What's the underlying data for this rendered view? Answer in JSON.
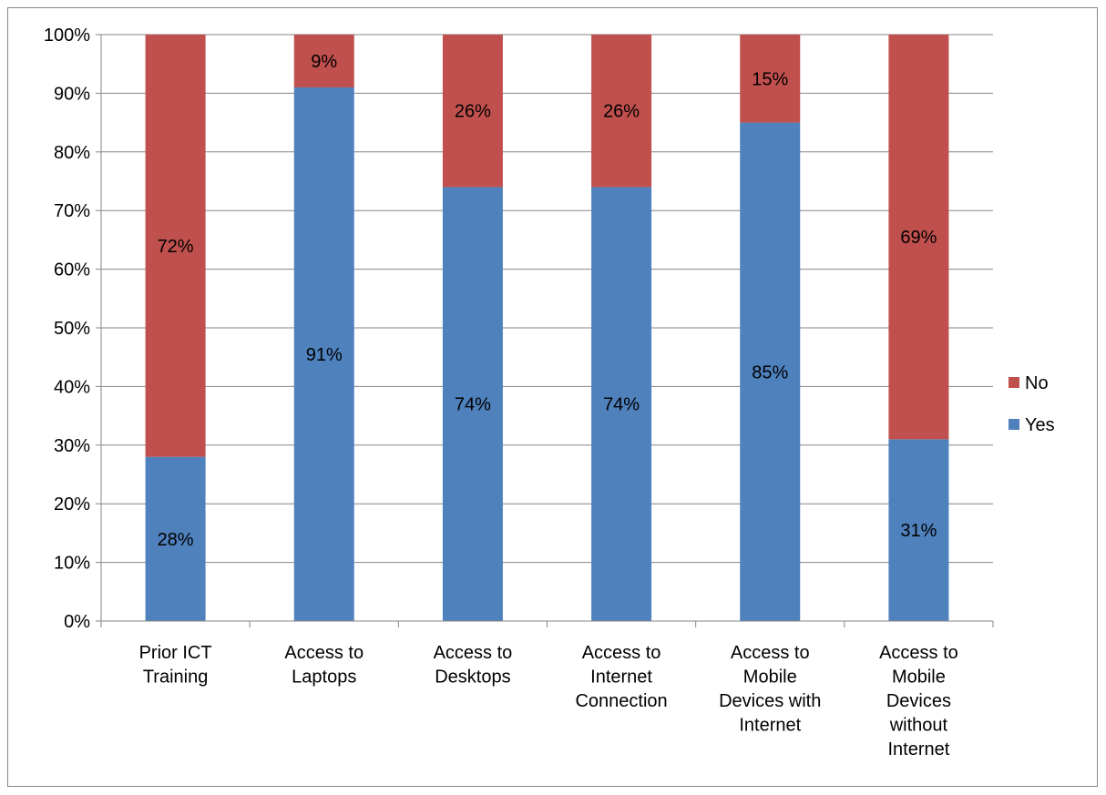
{
  "chart_data": {
    "type": "bar",
    "stacked": true,
    "categories": [
      "Prior ICT Training",
      "Access to Laptops",
      "Access to Desktops",
      "Access to Internet Connection",
      "Access to Mobile Devices with Internet",
      "Access to Mobile Devices without Internet"
    ],
    "category_lines": [
      [
        "Prior ICT",
        "Training"
      ],
      [
        "Access to",
        "Laptops"
      ],
      [
        "Access to",
        "Desktops"
      ],
      [
        "Access to",
        "Internet",
        "Connection"
      ],
      [
        "Access to",
        "Mobile",
        "Devices with",
        "Internet"
      ],
      [
        "Access to",
        "Mobile",
        "Devices",
        "without",
        "Internet"
      ]
    ],
    "series": [
      {
        "name": "Yes",
        "color": "#4F81BD",
        "values": [
          28,
          91,
          74,
          74,
          85,
          31
        ],
        "labels": [
          "28%",
          "91%",
          "74%",
          "74%",
          "85%",
          "31%"
        ]
      },
      {
        "name": "No",
        "color": "#C0504D",
        "values": [
          72,
          9,
          26,
          26,
          15,
          69
        ],
        "labels": [
          "72%",
          "9%",
          "26%",
          "26%",
          "15%",
          "69%"
        ]
      }
    ],
    "ylim": [
      0,
      100
    ],
    "y_ticks": [
      "0%",
      "10%",
      "20%",
      "30%",
      "40%",
      "50%",
      "60%",
      "70%",
      "80%",
      "90%",
      "100%"
    ],
    "grid": true,
    "legend_position": "right",
    "legend_order": [
      "No",
      "Yes"
    ],
    "title": "",
    "xlabel": "",
    "ylabel": ""
  }
}
